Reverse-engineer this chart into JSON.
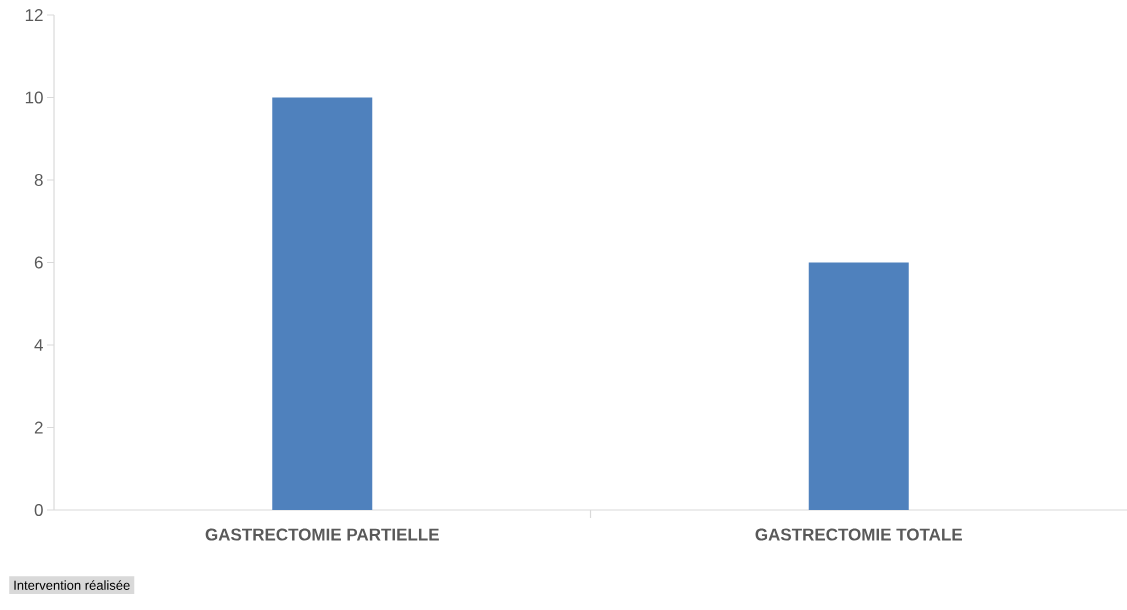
{
  "chart_data": {
    "type": "bar",
    "xlabel": "Intervention réalisée",
    "categories": [
      "GASTRECTOMIE PARTIELLE",
      "GASTRECTOMIE TOTALE"
    ],
    "values": [
      10,
      6
    ],
    "color": "#4f81bd",
    "ylim": [
      0,
      12
    ],
    "yticks": [
      0,
      2,
      4,
      6,
      8,
      10,
      12
    ]
  }
}
